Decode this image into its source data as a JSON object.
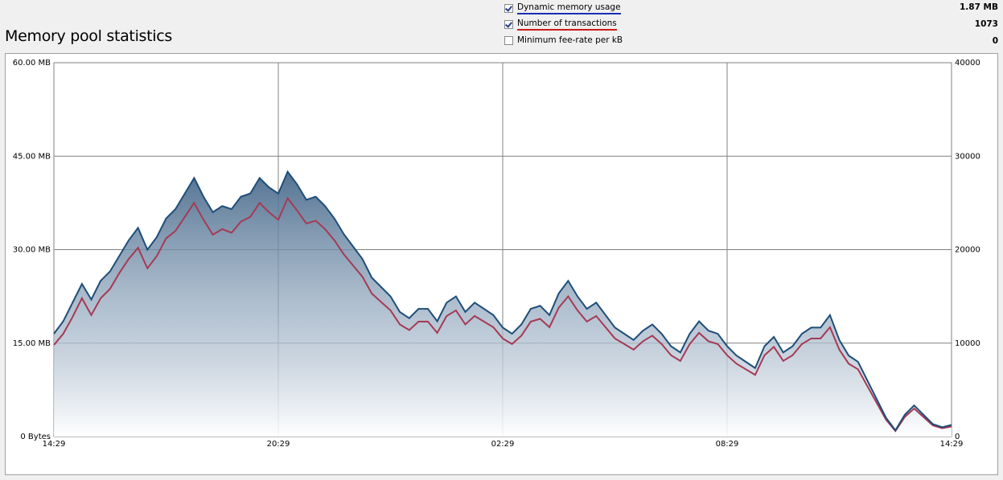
{
  "page": {
    "title": "Memory pool statistics"
  },
  "legend": [
    {
      "label": "Dynamic memory usage",
      "checked": true,
      "value": "1.87 MB",
      "underline": "#1b2fb0"
    },
    {
      "label": "Number of transactions",
      "checked": true,
      "value": "1073",
      "underline": "#cc1a1a"
    },
    {
      "label": "Minimum fee-rate per kB",
      "checked": false,
      "value": "0",
      "underline": ""
    }
  ],
  "chart_data": {
    "type": "area",
    "x_ticks": [
      "14:29",
      "20:29",
      "02:29",
      "08:29",
      "14:29"
    ],
    "y_left_ticks": [
      "0 Bytes",
      "15.00 MB",
      "30.00 MB",
      "45.00 MB",
      "60.00 MB"
    ],
    "y_right_ticks": [
      "0",
      "10000",
      "20000",
      "30000",
      "40000"
    ],
    "ylim_left": [
      0,
      60
    ],
    "ylim_right": [
      0,
      40000
    ],
    "grid": true,
    "colors": {
      "memory": "#1f4e79",
      "transactions": "#a53a55"
    },
    "series": [
      {
        "name": "Dynamic memory usage",
        "axis": "left",
        "unit": "MB",
        "x": [
          0,
          0.25,
          0.5,
          0.75,
          1,
          1.25,
          1.5,
          1.75,
          2,
          2.25,
          2.5,
          2.75,
          3,
          3.25,
          3.5,
          3.75,
          4,
          4.25,
          4.5,
          4.75,
          5,
          5.25,
          5.5,
          5.75,
          6,
          6.25,
          6.5,
          6.75,
          7,
          7.25,
          7.5,
          7.75,
          8,
          8.25,
          8.5,
          8.75,
          9,
          9.25,
          9.5,
          9.75,
          10,
          10.25,
          10.5,
          10.75,
          11,
          11.25,
          11.5,
          11.75,
          12,
          12.25,
          12.5,
          12.75,
          13,
          13.25,
          13.5,
          13.75,
          14,
          14.25,
          14.5,
          14.75,
          15,
          15.25,
          15.5,
          15.75,
          16,
          16.25,
          16.5,
          16.75,
          17,
          17.25,
          17.5,
          17.75,
          18,
          18.25,
          18.5,
          18.75,
          19,
          19.25,
          19.5,
          19.75,
          20,
          20.25,
          20.5,
          20.75,
          21,
          21.25,
          21.5,
          21.75,
          22,
          22.25,
          22.5,
          22.75,
          23,
          23.25,
          23.5,
          23.75,
          24
        ],
        "values": [
          16.5,
          18.5,
          21.5,
          24.5,
          22,
          25,
          26.5,
          29,
          31.5,
          33.5,
          30,
          32,
          35,
          36.5,
          39,
          41.5,
          38.5,
          36,
          37,
          36.5,
          38.5,
          39,
          41.5,
          40,
          39,
          42.5,
          40.5,
          38,
          38.5,
          37,
          35,
          32.5,
          30.5,
          28.5,
          25.5,
          24,
          22.5,
          20,
          19,
          20.5,
          20.5,
          18.5,
          21.5,
          22.5,
          20,
          21.5,
          20.5,
          19.5,
          17.5,
          16.5,
          18,
          20.5,
          21,
          19.5,
          23,
          25,
          22.5,
          20.5,
          21.5,
          19.5,
          17.5,
          16.5,
          15.5,
          17,
          18,
          16.5,
          14.5,
          13.5,
          16.5,
          18.5,
          17,
          16.5,
          14.5,
          13,
          12,
          11,
          14.5,
          16,
          13.5,
          14.5,
          16.5,
          17.5,
          17.5,
          19.5,
          15.5,
          13,
          12,
          9,
          6,
          3,
          1,
          3.5,
          5,
          3.5,
          2,
          1.5,
          1.87
        ]
      },
      {
        "name": "Number of transactions",
        "axis": "right",
        "unit": "tx",
        "x": [
          0,
          0.25,
          0.5,
          0.75,
          1,
          1.25,
          1.5,
          1.75,
          2,
          2.25,
          2.5,
          2.75,
          3,
          3.25,
          3.5,
          3.75,
          4,
          4.25,
          4.5,
          4.75,
          5,
          5.25,
          5.5,
          5.75,
          6,
          6.25,
          6.5,
          6.75,
          7,
          7.25,
          7.5,
          7.75,
          8,
          8.25,
          8.5,
          8.75,
          9,
          9.25,
          9.5,
          9.75,
          10,
          10.25,
          10.5,
          10.75,
          11,
          11.25,
          11.5,
          11.75,
          12,
          12.25,
          12.5,
          12.75,
          13,
          13.25,
          13.5,
          13.75,
          14,
          14.25,
          14.5,
          14.75,
          15,
          15.25,
          15.5,
          15.75,
          16,
          16.25,
          16.5,
          16.75,
          17,
          17.25,
          17.5,
          17.75,
          18,
          18.25,
          18.5,
          18.75,
          19,
          19.25,
          19.5,
          19.75,
          20,
          20.25,
          20.5,
          20.75,
          21,
          21.25,
          21.5,
          21.75,
          22,
          22.25,
          22.5,
          22.75,
          23,
          23.25,
          23.5,
          23.75,
          24
        ],
        "values": [
          9800,
          11000,
          12800,
          14800,
          13000,
          14800,
          15800,
          17500,
          19000,
          20200,
          18000,
          19300,
          21200,
          22000,
          23500,
          25000,
          23200,
          21600,
          22200,
          21800,
          23000,
          23500,
          25000,
          24000,
          23200,
          25500,
          24200,
          22800,
          23100,
          22200,
          21000,
          19500,
          18300,
          17100,
          15300,
          14400,
          13500,
          12000,
          11400,
          12300,
          12300,
          11100,
          12900,
          13500,
          12000,
          12900,
          12300,
          11700,
          10500,
          9900,
          10800,
          12300,
          12600,
          11700,
          13800,
          15000,
          13500,
          12300,
          12900,
          11700,
          10500,
          9900,
          9300,
          10200,
          10800,
          9900,
          8700,
          8100,
          9900,
          11100,
          10200,
          9900,
          8700,
          7800,
          7200,
          6600,
          8700,
          9600,
          8100,
          8700,
          9900,
          10500,
          10500,
          11700,
          9300,
          7800,
          7200,
          5400,
          3600,
          1800,
          600,
          2100,
          3000,
          2100,
          1200,
          900,
          1073
        ]
      }
    ]
  }
}
